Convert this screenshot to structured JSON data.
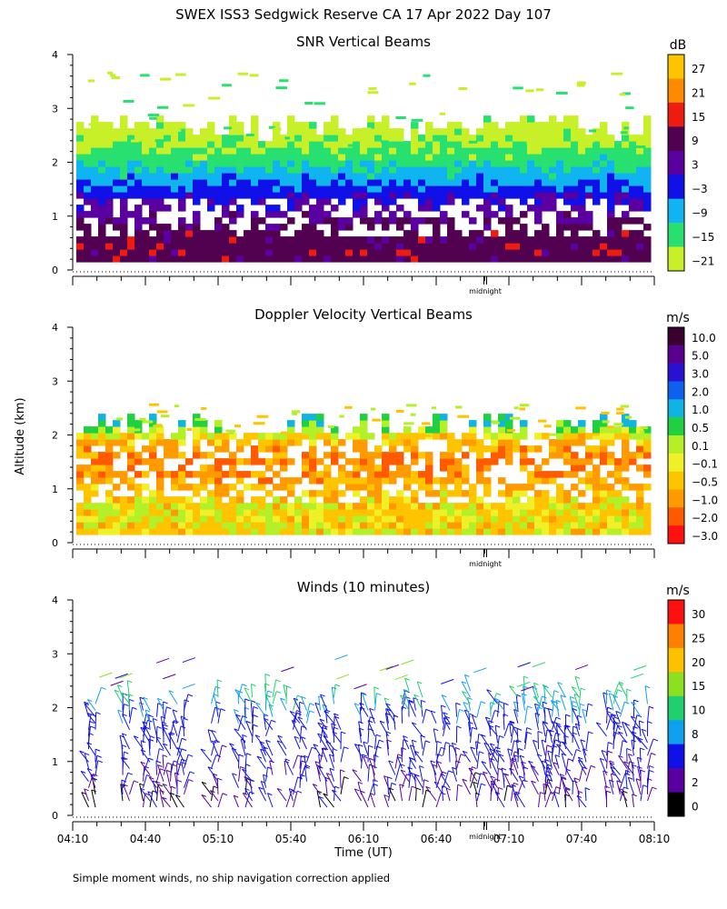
{
  "title": "SWEX ISS3 Sedgwick Reserve CA  17 Apr 2022 Day 107",
  "ylabel": "Altitude (km)",
  "xlabel": "Time (UT)",
  "footnote": "Simple moment winds, no ship navigation correction applied",
  "midnight_label": "midnight",
  "xtick_labels": [
    "04:10",
    "04:40",
    "05:10",
    "05:40",
    "06:10",
    "06:40",
    "07:10",
    "07:40",
    "08:10"
  ],
  "chart_data": [
    {
      "type": "heatmap",
      "title": "SNR Vertical Beams",
      "ylabel": "Altitude (km)",
      "ylim": [
        0,
        4
      ],
      "yticks": [
        "0",
        "1",
        "2",
        "3",
        "4"
      ],
      "colorbar": {
        "unit": "dB",
        "labels": [
          "27",
          "21",
          "15",
          "9",
          "3",
          "−3",
          "−9",
          "−15",
          "−21"
        ],
        "colors": [
          "#ffc400",
          "#ff8a00",
          "#ee1c10",
          "#520050",
          "#5a00a0",
          "#1010e8",
          "#10b4f0",
          "#28e070",
          "#c8f028"
        ]
      },
      "profile": [
        {
          "alt": 0.3,
          "snr_db": 9
        },
        {
          "alt": 0.7,
          "snr_db": 9
        },
        {
          "alt": 1.0,
          "snr_db": 3
        },
        {
          "alt": 1.4,
          "snr_db": -3
        },
        {
          "alt": 1.7,
          "snr_db": -9
        },
        {
          "alt": 2.0,
          "snr_db": -15
        },
        {
          "alt": 2.5,
          "snr_db": -21
        }
      ]
    },
    {
      "type": "heatmap",
      "title": "Doppler Velocity Vertical Beams",
      "ylabel": "Altitude (km)",
      "ylim": [
        0,
        4
      ],
      "yticks": [
        "0",
        "1",
        "2",
        "3",
        "4"
      ],
      "colorbar": {
        "unit": "m/s",
        "labels": [
          "10.0",
          "5.0",
          "3.0",
          "2.0",
          "1.0",
          "0.5",
          "0.1",
          "−0.1",
          "−0.5",
          "−1.0",
          "−2.0",
          "−3.0"
        ],
        "colors": [
          "#3a0030",
          "#5a0090",
          "#2a10d0",
          "#1060f0",
          "#10b4e0",
          "#20d040",
          "#b4f028",
          "#f0f028",
          "#ffc400",
          "#ff9a00",
          "#ff5a00",
          "#ff1010"
        ]
      },
      "profile": [
        {
          "alt": 0.3,
          "w_ms": -0.1
        },
        {
          "alt": 0.6,
          "w_ms": -0.1
        },
        {
          "alt": 1.0,
          "w_ms": -0.5
        },
        {
          "alt": 1.4,
          "w_ms": -1.0
        },
        {
          "alt": 1.8,
          "w_ms": -0.5
        },
        {
          "alt": 2.2,
          "w_ms": 1.0
        }
      ]
    },
    {
      "type": "scatter",
      "title": "Winds (10 minutes)",
      "ylabel": "Altitude (km)",
      "xlabel": "Time (UT)",
      "ylim": [
        0,
        4
      ],
      "yticks": [
        "0",
        "1",
        "2",
        "3",
        "4"
      ],
      "colorbar": {
        "unit": "m/s",
        "labels": [
          "30",
          "25",
          "20",
          "15",
          "10",
          "8",
          "4",
          "2",
          "0"
        ],
        "colors": [
          "#ff1010",
          "#ff8000",
          "#ffc000",
          "#8ce020",
          "#20d070",
          "#10a0f0",
          "#1010e8",
          "#5a00a0",
          "#000000"
        ]
      },
      "profile": [
        {
          "alt": 0.3,
          "speed_ms": 3
        },
        {
          "alt": 0.8,
          "speed_ms": 5
        },
        {
          "alt": 1.2,
          "speed_ms": 6
        },
        {
          "alt": 1.6,
          "speed_ms": 6
        },
        {
          "alt": 2.0,
          "speed_ms": 9
        },
        {
          "alt": 2.4,
          "speed_ms": 12
        },
        {
          "alt": 2.8,
          "speed_ms": 18
        }
      ]
    }
  ]
}
